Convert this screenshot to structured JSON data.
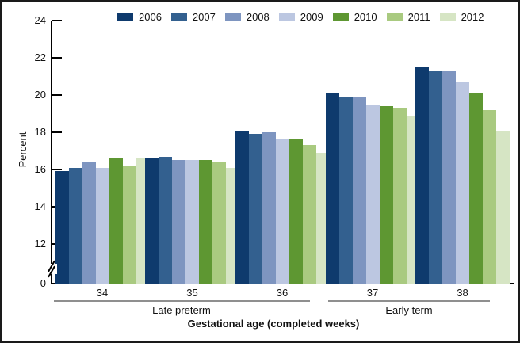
{
  "chart_data": {
    "type": "bar",
    "title": "",
    "ylabel": "Percent",
    "xlabel": "Gestational age (completed weeks)",
    "categories": [
      "34",
      "35",
      "36",
      "37",
      "38"
    ],
    "category_groups": [
      {
        "label": "Late preterm",
        "categories": [
          "34",
          "35",
          "36"
        ]
      },
      {
        "label": "Early term",
        "categories": [
          "37",
          "38"
        ]
      }
    ],
    "series": [
      {
        "name": "2006",
        "color": "#0e3a6d",
        "values": [
          15.9,
          16.6,
          18.1,
          20.1,
          21.5
        ]
      },
      {
        "name": "2007",
        "color": "#33608f",
        "values": [
          16.1,
          16.7,
          17.9,
          19.9,
          21.3
        ]
      },
      {
        "name": "2008",
        "color": "#7e95c0",
        "values": [
          16.4,
          16.5,
          18.0,
          19.9,
          21.3
        ]
      },
      {
        "name": "2009",
        "color": "#bcc7e1",
        "values": [
          16.1,
          16.5,
          17.6,
          19.5,
          20.7
        ]
      },
      {
        "name": "2010",
        "color": "#5e9732",
        "values": [
          16.6,
          16.5,
          17.6,
          19.4,
          20.1
        ]
      },
      {
        "name": "2011",
        "color": "#a9ca80",
        "values": [
          16.2,
          16.4,
          17.3,
          19.3,
          19.2
        ]
      },
      {
        "name": "2012",
        "color": "#d6e5c4",
        "values": [
          16.6,
          16.1,
          16.9,
          18.9,
          18.1
        ]
      }
    ],
    "y_ticks": [
      24,
      22,
      20,
      18,
      16,
      14,
      12,
      0
    ],
    "ylim_display": [
      12,
      24
    ],
    "axis_break_between": [
      0,
      12
    ],
    "legend_position": "top",
    "grid": false
  }
}
